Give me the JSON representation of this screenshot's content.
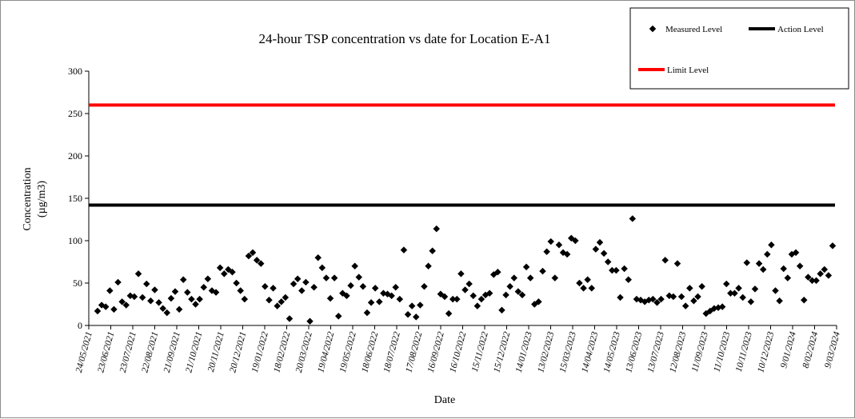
{
  "chart_data": {
    "type": "scatter",
    "title": "24-hour TSP concentration vs date for Location E-A1",
    "xlabel": "Date",
    "ylabel": [
      "Concentration",
      "(µg/m3)"
    ],
    "ylim": [
      0,
      300
    ],
    "yticks": [
      0,
      50,
      100,
      150,
      200,
      250,
      300
    ],
    "grid": false,
    "legend_position": "top-right",
    "x_tick_labels": [
      "24/05/2021",
      "23/06/2021",
      "23/07/2021",
      "22/08/2021",
      "21/09/2021",
      "21/10/2021",
      "20/11/2021",
      "20/12/2021",
      "19/01/2022",
      "18/02/2022",
      "20/03/2022",
      "19/04/2022",
      "19/05/2022",
      "18/06/2022",
      "18/07/2022",
      "17/08/2022",
      "16/09/2022",
      "16/10/2022",
      "15/11/2022",
      "15/12/2022",
      "14/01/2023",
      "13/02/2023",
      "15/03/2023",
      "14/04/2023",
      "14/05/2023",
      "13/06/2023",
      "13/07/2023",
      "12/08/2023",
      "11/09/2023",
      "11/10/2023",
      "10/11/2023",
      "10/12/2023",
      "9/01/2024",
      "8/02/2024",
      "9/03/2024"
    ],
    "series": [
      {
        "name": "Measured Level",
        "kind": "points",
        "color": "#000000",
        "values": [
          17,
          24,
          22,
          41,
          19,
          51,
          28,
          24,
          35,
          34,
          61,
          33,
          49,
          29,
          42,
          27,
          20,
          15,
          32,
          40,
          19,
          54,
          39,
          31,
          25,
          31,
          45,
          55,
          41,
          39,
          68,
          61,
          66,
          63,
          50,
          41,
          31,
          82,
          86,
          77,
          73,
          46,
          30,
          44,
          23,
          28,
          33,
          8,
          49,
          55,
          41,
          51,
          5,
          45,
          80,
          68,
          56,
          32,
          56,
          11,
          38,
          35,
          47,
          70,
          57,
          46,
          15,
          27,
          44,
          28,
          38,
          37,
          35,
          45,
          31,
          89,
          13,
          23,
          10,
          24,
          46,
          70,
          88,
          114,
          37,
          34,
          14,
          31,
          31,
          61,
          42,
          49,
          35,
          23,
          31,
          36,
          38,
          60,
          63,
          18,
          36,
          46,
          56,
          40,
          36,
          69,
          56,
          25,
          28,
          64,
          87,
          99,
          56,
          95,
          86,
          84,
          103,
          100,
          50,
          44,
          54,
          44,
          90,
          98,
          85,
          75,
          65,
          65,
          33,
          67,
          54,
          126,
          31,
          30,
          28,
          30,
          31,
          27,
          31,
          77,
          35,
          34,
          73,
          34,
          23,
          44,
          29,
          34,
          46,
          14,
          17,
          20,
          21,
          22,
          49,
          38,
          38,
          44,
          33,
          74,
          28,
          43,
          73,
          66,
          84,
          95,
          41,
          29,
          67,
          56,
          84,
          86,
          70,
          30,
          57,
          53,
          53,
          61,
          66,
          59,
          94
        ]
      },
      {
        "name": "Action Level",
        "kind": "line",
        "color": "#000000",
        "value": 142
      },
      {
        "name": "Limit Level",
        "kind": "line",
        "color": "#ff0000",
        "value": 260
      }
    ]
  }
}
